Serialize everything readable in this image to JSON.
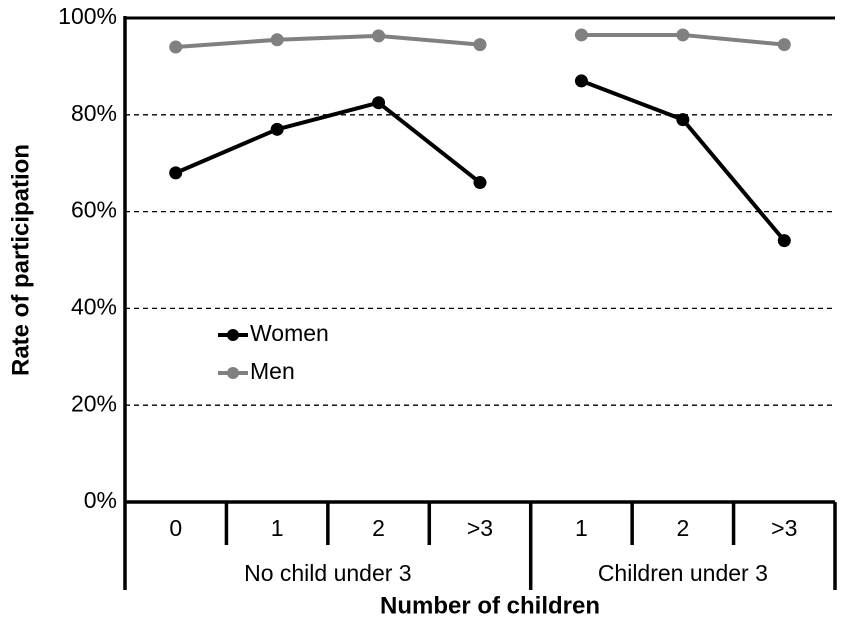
{
  "chart_data": {
    "type": "line",
    "y_label": "Rate of participation",
    "x_label": "Number of children",
    "groups": [
      {
        "name": "No child under 3",
        "categories": [
          "0",
          "1",
          "2",
          ">3"
        ]
      },
      {
        "name": "Children under 3",
        "categories": [
          "1",
          "2",
          ">3"
        ]
      }
    ],
    "series": [
      {
        "name": "Women",
        "color": "#000000",
        "values": [
          68,
          77,
          82.5,
          66,
          87,
          79,
          54
        ]
      },
      {
        "name": "Men",
        "color": "#808080",
        "values": [
          94,
          95.5,
          96.3,
          94.5,
          96.5,
          96.5,
          94.5
        ]
      }
    ],
    "ylim": [
      0,
      100
    ],
    "yticks": [
      {
        "value": 0,
        "label": "0%"
      },
      {
        "value": 20,
        "label": "20%"
      },
      {
        "value": 40,
        "label": "40%"
      },
      {
        "value": 60,
        "label": "60%"
      },
      {
        "value": 80,
        "label": "80%"
      },
      {
        "value": 100,
        "label": "100%"
      }
    ],
    "grid": true
  }
}
